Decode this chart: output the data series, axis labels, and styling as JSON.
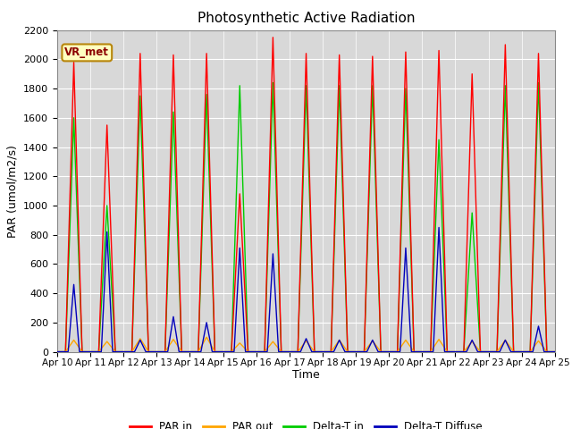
{
  "title": "Photosynthetic Active Radiation",
  "ylabel": "PAR (umol/m2/s)",
  "xlabel": "Time",
  "annotation": "VR_met",
  "ylim": [
    0,
    2200
  ],
  "xtick_labels": [
    "Apr 10",
    "Apr 11",
    "Apr 12",
    "Apr 13",
    "Apr 14",
    "Apr 15",
    "Apr 16",
    "Apr 17",
    "Apr 18",
    "Apr 19",
    "Apr 20",
    "Apr 21",
    "Apr 22",
    "Apr 23",
    "Apr 24",
    "Apr 25"
  ],
  "colors": {
    "par_in": "#ff0000",
    "par_out": "#ffa500",
    "delta_t_in": "#00cc00",
    "delta_t_diffuse": "#0000bb"
  },
  "legend_labels": [
    "PAR in",
    "PAR out",
    "Delta-T in",
    "Delta-T Diffuse"
  ],
  "background_color": "#d8d8d8",
  "title_fontsize": 11,
  "axis_fontsize": 9,
  "par_in_peaks": [
    1980,
    1550,
    2040,
    2030,
    2040,
    1080,
    2150,
    2040,
    2030,
    2020,
    2050,
    2060,
    1900,
    2100,
    2040
  ],
  "par_out_peaks": [
    80,
    70,
    90,
    85,
    100,
    60,
    70,
    75,
    80,
    75,
    80,
    85,
    70,
    80,
    75
  ],
  "delta_t_in_peaks": [
    1600,
    1000,
    1750,
    1640,
    1760,
    1820,
    1840,
    1820,
    1820,
    1820,
    1800,
    1450,
    950,
    1820,
    1840
  ],
  "delta_t_diff_peaks": [
    460,
    820,
    80,
    240,
    200,
    710,
    670,
    90,
    80,
    80,
    710,
    850,
    80,
    80,
    175
  ],
  "n_days": 15,
  "pts_per_day": 144
}
